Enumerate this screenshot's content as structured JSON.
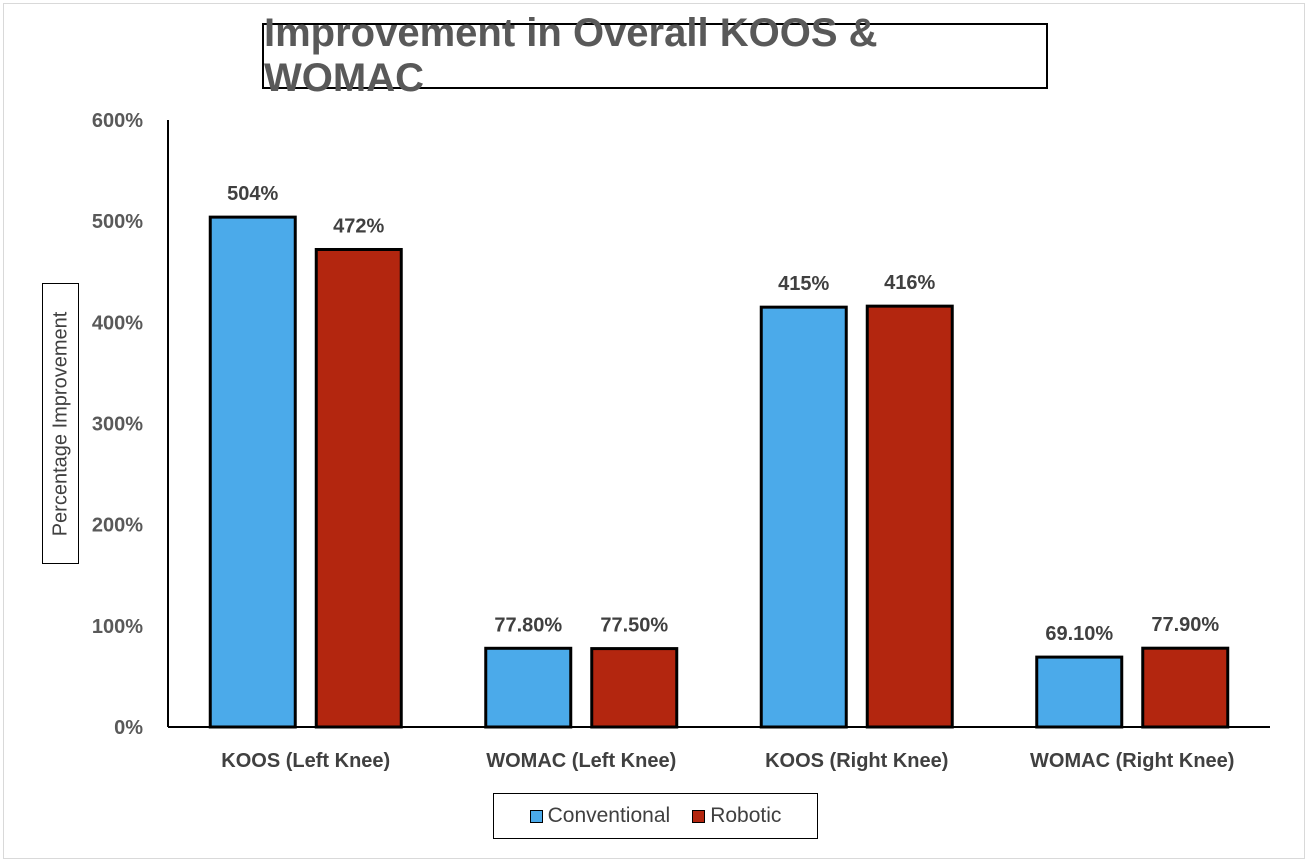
{
  "chart_data": {
    "type": "bar",
    "title": "Improvement in Overall KOOS & WOMAC",
    "xlabel": "",
    "ylabel": "Percentage Improvement",
    "ylim": [
      0,
      600
    ],
    "yticks": [
      "0%",
      "100%",
      "200%",
      "300%",
      "400%",
      "500%",
      "600%"
    ],
    "categories": [
      "KOOS (Left Knee)",
      "WOMAC (Left Knee)",
      "KOOS (Right Knee)",
      "WOMAC (Right Knee)"
    ],
    "series": [
      {
        "name": "Conventional",
        "color": "#4baaea",
        "values": [
          504,
          77.8,
          415,
          69.1
        ],
        "labels": [
          "504%",
          "77.80%",
          "415%",
          "69.10%"
        ]
      },
      {
        "name": "Robotic",
        "color": "#b3260f",
        "values": [
          472,
          77.5,
          416,
          77.9
        ],
        "labels": [
          "472%",
          "77.50%",
          "416%",
          "77.90%"
        ]
      }
    ],
    "legend_position": "bottom",
    "grid": false
  }
}
